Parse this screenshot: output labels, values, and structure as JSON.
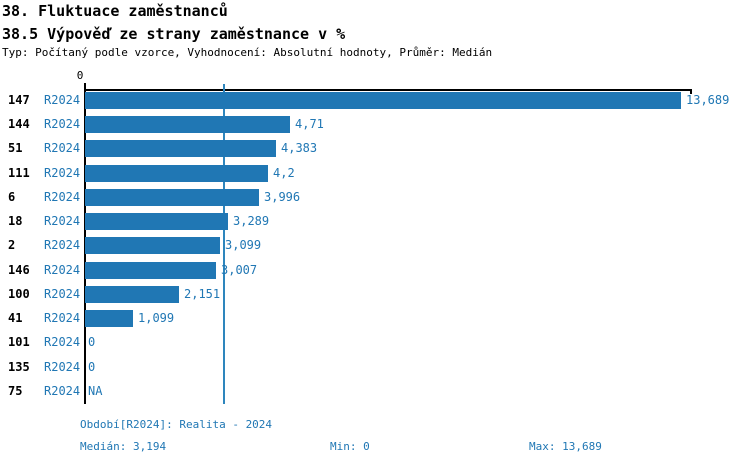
{
  "header": {
    "title": "38. Fluktuace zaměstnanců",
    "subtitle": "38.5 Výpověď ze strany zaměstnance v %",
    "meta": "Typ: Počítaný podle vzorce, Vyhodnocení: Absolutní hodnoty, Průměr: Medián"
  },
  "colors": {
    "bar": "#2077b4",
    "accent_text": "#2077b4",
    "median_line": "#2e86bd",
    "axis": "#000000"
  },
  "chart_data": {
    "type": "bar",
    "orientation": "horizontal",
    "title": "38.5 Výpověď ze strany zaměstnance v %",
    "xlabel": "",
    "ylabel": "",
    "xlim": [
      0,
      13.941
    ],
    "grid": false,
    "axis_ticks": [
      {
        "value": 0,
        "label": "0"
      }
    ],
    "median_rule": {
      "value": 3.194,
      "label": "3,194"
    },
    "categories": [
      "147",
      "144",
      "51",
      "111",
      "6",
      "18",
      "2",
      "146",
      "100",
      "41",
      "101",
      "135",
      "75"
    ],
    "series": [
      {
        "name": "R2024",
        "values": [
          13.689,
          4.71,
          4.383,
          4.2,
          3.996,
          3.289,
          3.099,
          3.007,
          2.151,
          1.099,
          0,
          0,
          null
        ]
      }
    ],
    "rows": [
      {
        "id": "147",
        "period": "R2024",
        "value": 13.689,
        "label": "13,689"
      },
      {
        "id": "144",
        "period": "R2024",
        "value": 4.71,
        "label": "4,71"
      },
      {
        "id": "51",
        "period": "R2024",
        "value": 4.383,
        "label": "4,383"
      },
      {
        "id": "111",
        "period": "R2024",
        "value": 4.2,
        "label": "4,2"
      },
      {
        "id": "6",
        "period": "R2024",
        "value": 3.996,
        "label": "3,996"
      },
      {
        "id": "18",
        "period": "R2024",
        "value": 3.289,
        "label": "3,289"
      },
      {
        "id": "2",
        "period": "R2024",
        "value": 3.099,
        "label": "3,099"
      },
      {
        "id": "146",
        "period": "R2024",
        "value": 3.007,
        "label": "3,007"
      },
      {
        "id": "100",
        "period": "R2024",
        "value": 2.151,
        "label": "2,151"
      },
      {
        "id": "41",
        "period": "R2024",
        "value": 1.099,
        "label": "1,099"
      },
      {
        "id": "101",
        "period": "R2024",
        "value": 0,
        "label": "0"
      },
      {
        "id": "135",
        "period": "R2024",
        "value": 0,
        "label": "0"
      },
      {
        "id": "75",
        "period": "R2024",
        "value": null,
        "label": "NA"
      }
    ]
  },
  "footer": {
    "period_info": "Období[R2024]: Realita - 2024",
    "median": "Medián: 3,194",
    "min": "Min: 0",
    "max": "Max: 13,689"
  }
}
